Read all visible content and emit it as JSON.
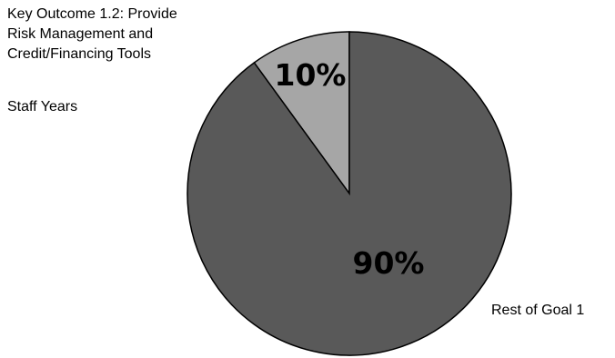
{
  "chart_data": {
    "type": "pie",
    "title_lines": [
      "Key Outcome 1.2: Provide",
      "Risk Management and",
      "Credit/Financing Tools"
    ],
    "subtitle": "Staff Years",
    "slices": [
      {
        "label": "",
        "value": 10,
        "value_label": "10%",
        "color": "#a6a6a6"
      },
      {
        "label": "Rest of Goal 1",
        "value": 90,
        "value_label": "90%",
        "color": "#595959"
      }
    ],
    "outline_color": "#000000"
  }
}
